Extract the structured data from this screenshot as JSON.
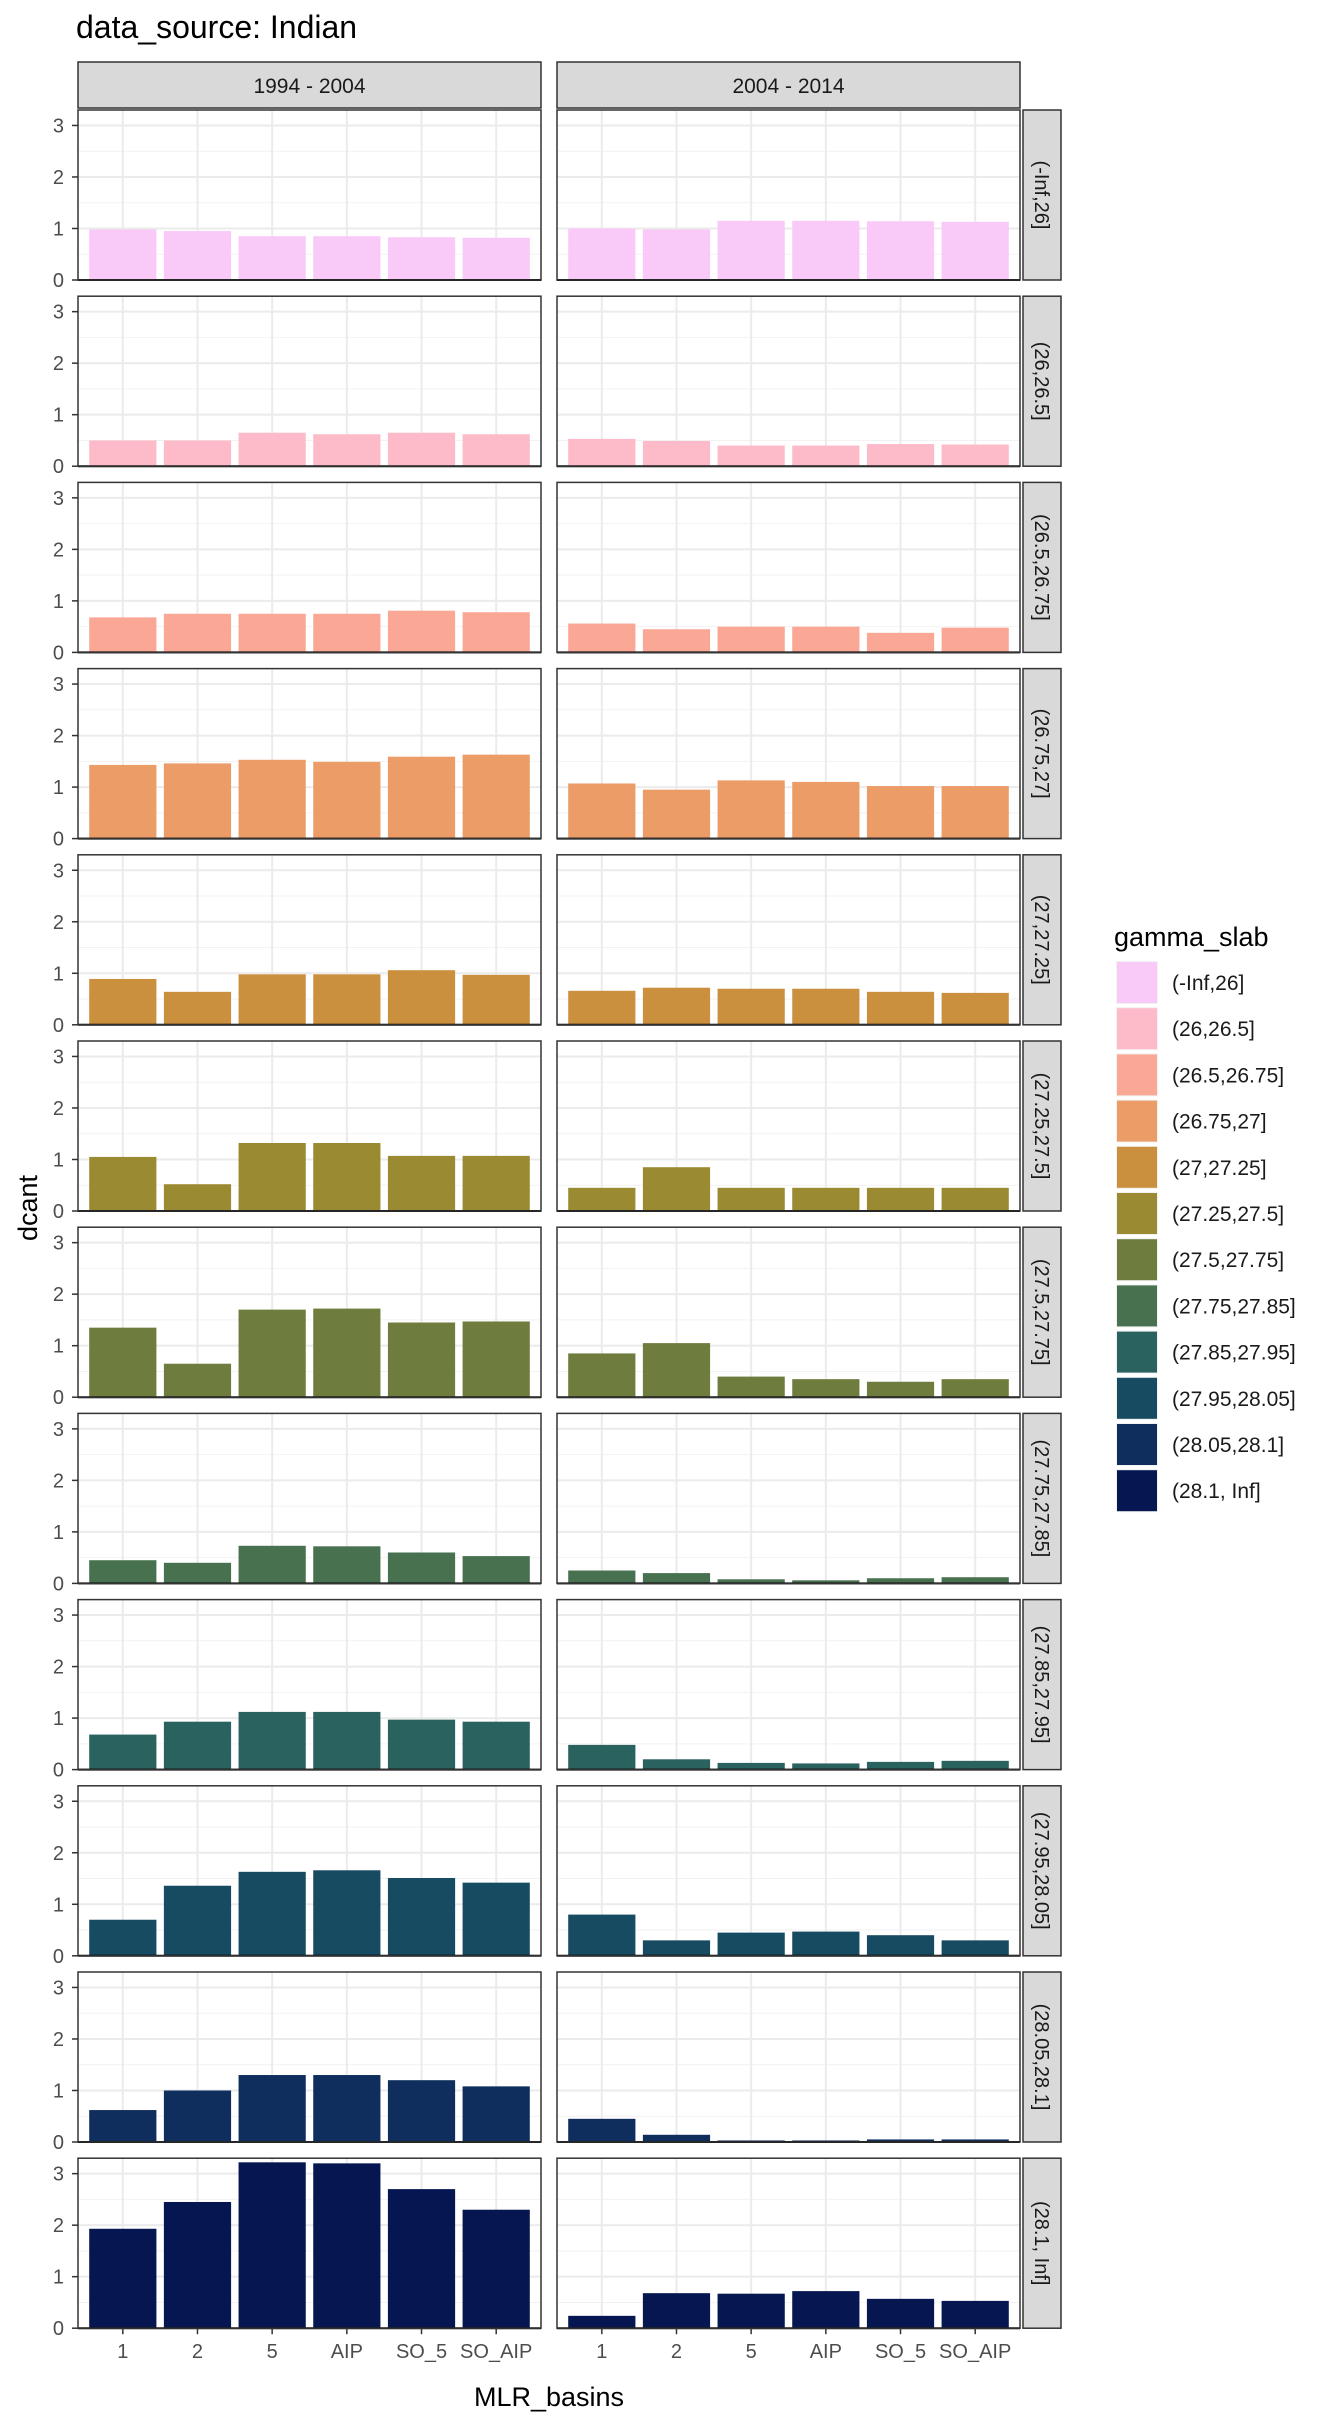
{
  "chart_data": {
    "type": "bar",
    "title": "data_source: Indian",
    "xlabel": "MLR_basins",
    "ylabel": "dcant",
    "categories": [
      "1",
      "2",
      "5",
      "AIP",
      "SO_5",
      "SO_AIP"
    ],
    "ylim": [
      0,
      3.3
    ],
    "yticks": [
      0,
      1,
      2,
      3
    ],
    "grid": true,
    "legend_position": "right",
    "legend_title": "gamma_slab",
    "columns": [
      "1994 - 2004",
      "2004 - 2014"
    ],
    "rows": [
      {
        "label": "(-Inf,26]",
        "color": "#F9CAF7",
        "values": [
          [
            0.98,
            0.95,
            0.85,
            0.85,
            0.83,
            0.82
          ],
          [
            1.0,
            0.98,
            1.15,
            1.15,
            1.14,
            1.13
          ]
        ]
      },
      {
        "label": "(26,26.5]",
        "color": "#FDBAC9",
        "values": [
          [
            0.5,
            0.5,
            0.65,
            0.62,
            0.65,
            0.62
          ],
          [
            0.53,
            0.49,
            0.4,
            0.4,
            0.43,
            0.42
          ]
        ]
      },
      {
        "label": "(26.5,26.75]",
        "color": "#FAA796",
        "values": [
          [
            0.68,
            0.75,
            0.75,
            0.75,
            0.81,
            0.78
          ],
          [
            0.56,
            0.45,
            0.5,
            0.5,
            0.38,
            0.48
          ]
        ]
      },
      {
        "label": "(26.75,27]",
        "color": "#EC9C67",
        "values": [
          [
            1.43,
            1.46,
            1.53,
            1.49,
            1.59,
            1.63
          ],
          [
            1.07,
            0.95,
            1.13,
            1.1,
            1.02,
            1.02
          ]
        ]
      },
      {
        "label": "(27,27.25]",
        "color": "#CB903E",
        "values": [
          [
            0.89,
            0.64,
            0.98,
            0.98,
            1.06,
            0.97
          ],
          [
            0.66,
            0.72,
            0.7,
            0.7,
            0.64,
            0.62
          ]
        ]
      },
      {
        "label": "(27.25,27.5]",
        "color": "#9A8A31",
        "values": [
          [
            1.05,
            0.52,
            1.32,
            1.32,
            1.07,
            1.07
          ],
          [
            0.45,
            0.85,
            0.45,
            0.45,
            0.45,
            0.45
          ]
        ]
      },
      {
        "label": "(27.5,27.75]",
        "color": "#6E7C3E",
        "values": [
          [
            1.35,
            0.65,
            1.7,
            1.72,
            1.45,
            1.47
          ],
          [
            0.85,
            1.05,
            0.4,
            0.35,
            0.3,
            0.35
          ]
        ]
      },
      {
        "label": "(27.75,27.85]",
        "color": "#48714F",
        "values": [
          [
            0.45,
            0.4,
            0.73,
            0.72,
            0.6,
            0.53
          ],
          [
            0.25,
            0.2,
            0.08,
            0.06,
            0.1,
            0.12
          ]
        ]
      },
      {
        "label": "(27.85,27.95]",
        "color": "#2A625F",
        "values": [
          [
            0.68,
            0.93,
            1.12,
            1.12,
            0.97,
            0.93
          ],
          [
            0.48,
            0.2,
            0.13,
            0.12,
            0.15,
            0.17
          ]
        ]
      },
      {
        "label": "(27.95,28.05]",
        "color": "#174B62",
        "values": [
          [
            0.7,
            1.36,
            1.63,
            1.66,
            1.51,
            1.42
          ],
          [
            0.8,
            0.3,
            0.45,
            0.47,
            0.4,
            0.3
          ]
        ]
      },
      {
        "label": "(28.05,28.1]",
        "color": "#0F2E5E",
        "values": [
          [
            0.62,
            1.0,
            1.3,
            1.3,
            1.2,
            1.08
          ],
          [
            0.45,
            0.14,
            0.03,
            0.03,
            0.05,
            0.05
          ]
        ]
      },
      {
        "label": "(28.1, Inf]",
        "color": "#051651",
        "values": [
          [
            1.93,
            2.45,
            3.22,
            3.2,
            2.7,
            2.3
          ],
          [
            0.24,
            0.68,
            0.67,
            0.72,
            0.57,
            0.53
          ]
        ]
      }
    ]
  }
}
